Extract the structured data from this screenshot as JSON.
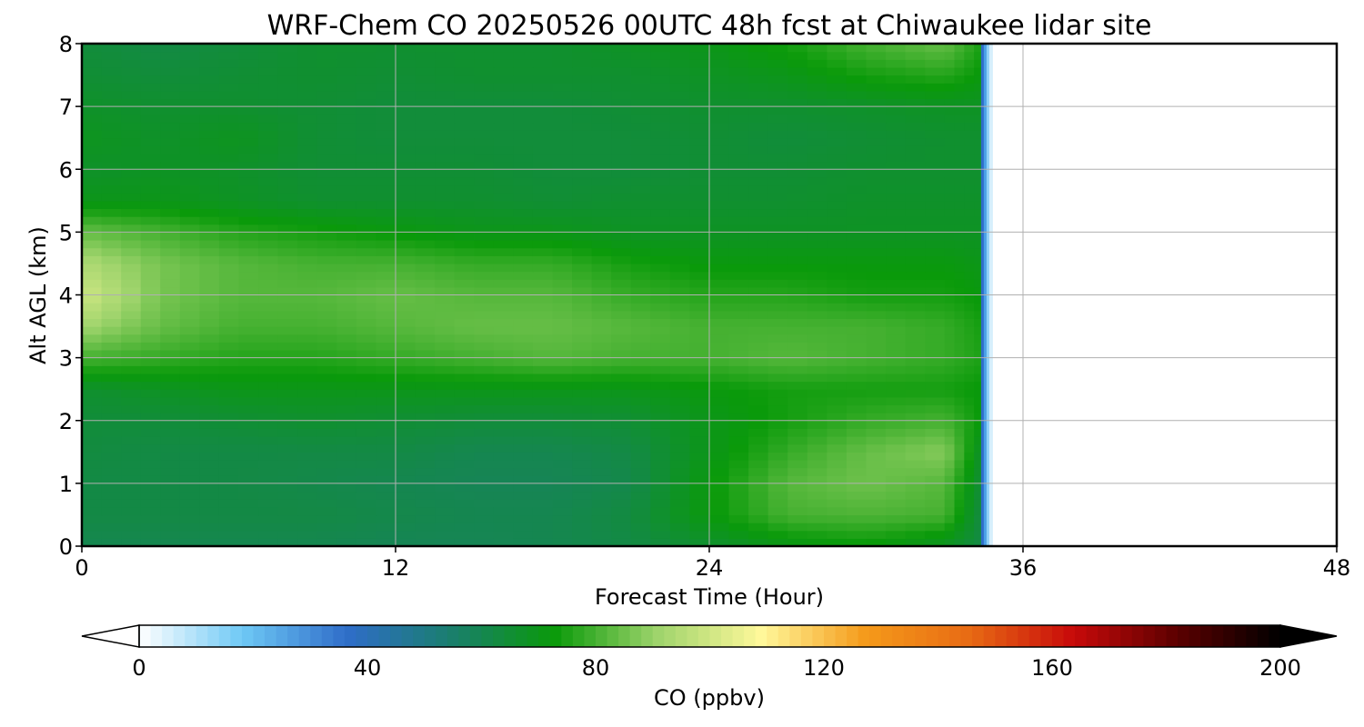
{
  "chart_data": {
    "type": "heatmap",
    "title": "WRF-Chem CO  20250526 00UTC 48h fcst at Chiwaukee lidar site",
    "xlabel": "Forecast Time (Hour)",
    "ylabel": "Alt AGL (km)",
    "xlim": [
      0,
      48
    ],
    "ylim": [
      0,
      8
    ],
    "x_ticks": [
      "0",
      "12",
      "24",
      "36",
      "48"
    ],
    "y_ticks": [
      "0",
      "1",
      "2",
      "3",
      "4",
      "5",
      "6",
      "7",
      "8"
    ],
    "grid": true,
    "data_end_hour": 34.5,
    "x": [
      0,
      3,
      6,
      9,
      12,
      15,
      18,
      21,
      24,
      27,
      30,
      33,
      34.5
    ],
    "y": [
      0,
      0.5,
      1,
      1.5,
      2,
      2.5,
      3,
      3.5,
      4,
      4.5,
      5,
      5.5,
      6,
      6.5,
      7,
      7.5,
      8
    ],
    "z": [
      [
        60,
        60,
        60,
        60,
        59,
        59,
        60,
        62,
        66,
        70,
        72,
        68,
        62
      ],
      [
        62,
        62,
        62,
        62,
        61,
        60,
        60,
        63,
        72,
        80,
        81,
        80,
        62
      ],
      [
        62,
        62,
        62,
        61,
        60,
        59,
        59,
        61,
        72,
        82,
        85,
        82,
        64
      ],
      [
        63,
        62,
        62,
        62,
        62,
        60,
        60,
        62,
        70,
        78,
        84,
        88,
        66
      ],
      [
        64,
        64,
        65,
        66,
        65,
        64,
        64,
        65,
        70,
        74,
        78,
        80,
        72
      ],
      [
        66,
        68,
        70,
        70,
        70,
        70,
        70,
        70,
        72,
        74,
        74,
        74,
        72
      ],
      [
        80,
        78,
        76,
        76,
        78,
        80,
        82,
        80,
        80,
        82,
        80,
        78,
        75
      ],
      [
        92,
        84,
        80,
        80,
        82,
        84,
        84,
        82,
        80,
        80,
        80,
        78,
        74
      ],
      [
        100,
        86,
        82,
        82,
        84,
        82,
        82,
        78,
        76,
        76,
        74,
        74,
        72
      ],
      [
        94,
        86,
        82,
        80,
        80,
        78,
        78,
        74,
        72,
        72,
        72,
        72,
        70
      ],
      [
        84,
        80,
        76,
        74,
        72,
        70,
        70,
        68,
        68,
        68,
        68,
        68,
        68
      ],
      [
        70,
        70,
        68,
        66,
        66,
        66,
        65,
        66,
        66,
        66,
        67,
        67,
        67
      ],
      [
        67,
        68,
        67,
        65,
        65,
        65,
        64,
        64,
        65,
        65,
        66,
        66,
        66
      ],
      [
        69,
        67,
        69,
        65,
        64,
        64,
        64,
        64,
        65,
        64,
        65,
        66,
        66
      ],
      [
        67,
        66,
        66,
        65,
        64,
        64,
        64,
        65,
        66,
        66,
        67,
        68,
        68
      ],
      [
        65,
        64,
        65,
        66,
        65,
        66,
        66,
        66,
        68,
        70,
        74,
        76,
        72
      ],
      [
        64,
        62,
        64,
        66,
        66,
        66,
        66,
        68,
        70,
        74,
        80,
        84,
        74
      ]
    ],
    "colorbar": {
      "label": "CO  (ppbv)",
      "ticks": [
        "0",
        "40",
        "80",
        "120",
        "160",
        "200"
      ],
      "min": 0,
      "max": 200,
      "extend": "both",
      "colors": [
        "#ffffff",
        "#6ec8f5",
        "#2f6dc9",
        "#1a7e6e",
        "#0a9a0a",
        "#9fd46c",
        "#fff89a",
        "#f59a1a",
        "#e86b14",
        "#c80a0a",
        "#5c0000",
        "#000000"
      ]
    }
  }
}
